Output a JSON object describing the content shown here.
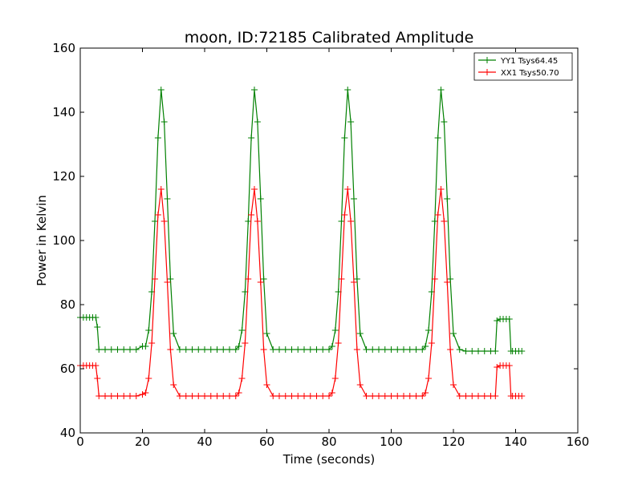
{
  "chart_data": {
    "type": "line",
    "title": "moon, ID:72185 Calibrated Amplitude",
    "xlabel": "Time (seconds)",
    "ylabel": "Power in Kelvin",
    "xlim": [
      0,
      160
    ],
    "ylim": [
      40,
      160
    ],
    "xticks": [
      0,
      20,
      40,
      60,
      80,
      100,
      120,
      140,
      160
    ],
    "yticks": [
      40,
      60,
      80,
      100,
      120,
      140,
      160
    ],
    "grid": false,
    "legend_position": "top-right",
    "series": [
      {
        "name": "YY1 Tsys64.45",
        "color": "#008000",
        "x": [
          0,
          1,
          2,
          3,
          4,
          5,
          5.5,
          6,
          8,
          10,
          12,
          14,
          16,
          18,
          20,
          21,
          22,
          23,
          24,
          25,
          26,
          27,
          28,
          29,
          30,
          32,
          34,
          36,
          38,
          40,
          42,
          44,
          46,
          48,
          50,
          51,
          52,
          53,
          54,
          55,
          56,
          57,
          58,
          59,
          60,
          62,
          64,
          66,
          68,
          70,
          72,
          74,
          76,
          78,
          80,
          81,
          82,
          83,
          84,
          85,
          86,
          87,
          88,
          89,
          90,
          92,
          94,
          96,
          98,
          100,
          102,
          104,
          106,
          108,
          110,
          111,
          112,
          113,
          114,
          115,
          116,
          117,
          118,
          119,
          120,
          122,
          124,
          126,
          128,
          130,
          132,
          133.5,
          134,
          135,
          136,
          137,
          138,
          138.5,
          139,
          140,
          141,
          142
        ],
        "y": [
          76,
          76,
          76,
          76,
          76,
          76,
          73,
          66,
          66,
          66,
          66,
          66,
          66,
          66,
          67,
          67,
          72,
          84,
          106,
          132,
          147,
          137,
          113,
          88,
          71,
          66,
          66,
          66,
          66,
          66,
          66,
          66,
          66,
          66,
          66,
          67,
          72,
          84,
          106,
          132,
          147,
          137,
          113,
          88,
          71,
          66,
          66,
          66,
          66,
          66,
          66,
          66,
          66,
          66,
          66,
          67,
          72,
          84,
          106,
          132,
          147,
          137,
          113,
          88,
          71,
          66,
          66,
          66,
          66,
          66,
          66,
          66,
          66,
          66,
          66,
          67,
          72,
          84,
          106,
          132,
          147,
          137,
          113,
          88,
          71,
          66,
          65.5,
          65.5,
          65.5,
          65.5,
          65.5,
          65.5,
          75,
          75.5,
          75.5,
          75.5,
          75.5,
          65.5,
          65.5,
          65.5,
          65.5,
          65.5
        ]
      },
      {
        "name": "XX1 Tsys50.70",
        "color": "#ff0000",
        "x": [
          0,
          1,
          2,
          3,
          4,
          5,
          5.5,
          6,
          8,
          10,
          12,
          14,
          16,
          18,
          20,
          21,
          22,
          23,
          24,
          25,
          26,
          27,
          28,
          29,
          30,
          32,
          34,
          36,
          38,
          40,
          42,
          44,
          46,
          48,
          50,
          51,
          52,
          53,
          54,
          55,
          56,
          57,
          58,
          59,
          60,
          62,
          64,
          66,
          68,
          70,
          72,
          74,
          76,
          78,
          80,
          81,
          82,
          83,
          84,
          85,
          86,
          87,
          88,
          89,
          90,
          92,
          94,
          96,
          98,
          100,
          102,
          104,
          106,
          108,
          110,
          111,
          112,
          113,
          114,
          115,
          116,
          117,
          118,
          119,
          120,
          122,
          124,
          126,
          128,
          130,
          132,
          133.5,
          134,
          135,
          136,
          137,
          138,
          138.5,
          139,
          140,
          141,
          142
        ],
        "y": [
          61,
          61,
          61,
          61,
          61,
          61,
          57,
          51.5,
          51.5,
          51.5,
          51.5,
          51.5,
          51.5,
          51.5,
          52,
          52.5,
          57,
          68,
          88,
          108,
          116,
          106,
          87,
          66,
          55,
          51.5,
          51.5,
          51.5,
          51.5,
          51.5,
          51.5,
          51.5,
          51.5,
          51.5,
          51.5,
          52.5,
          57,
          68,
          88,
          108,
          116,
          106,
          87,
          66,
          55,
          51.5,
          51.5,
          51.5,
          51.5,
          51.5,
          51.5,
          51.5,
          51.5,
          51.5,
          51.5,
          52.5,
          57,
          68,
          88,
          108,
          116,
          106,
          87,
          66,
          55,
          51.5,
          51.5,
          51.5,
          51.5,
          51.5,
          51.5,
          51.5,
          51.5,
          51.5,
          51.5,
          52.5,
          57,
          68,
          88,
          108,
          116,
          106,
          87,
          66,
          55,
          51.5,
          51.5,
          51.5,
          51.5,
          51.5,
          51.5,
          51.5,
          60.5,
          61,
          61,
          61,
          61,
          51.5,
          51.5,
          51.5,
          51.5,
          51.5
        ]
      }
    ]
  }
}
